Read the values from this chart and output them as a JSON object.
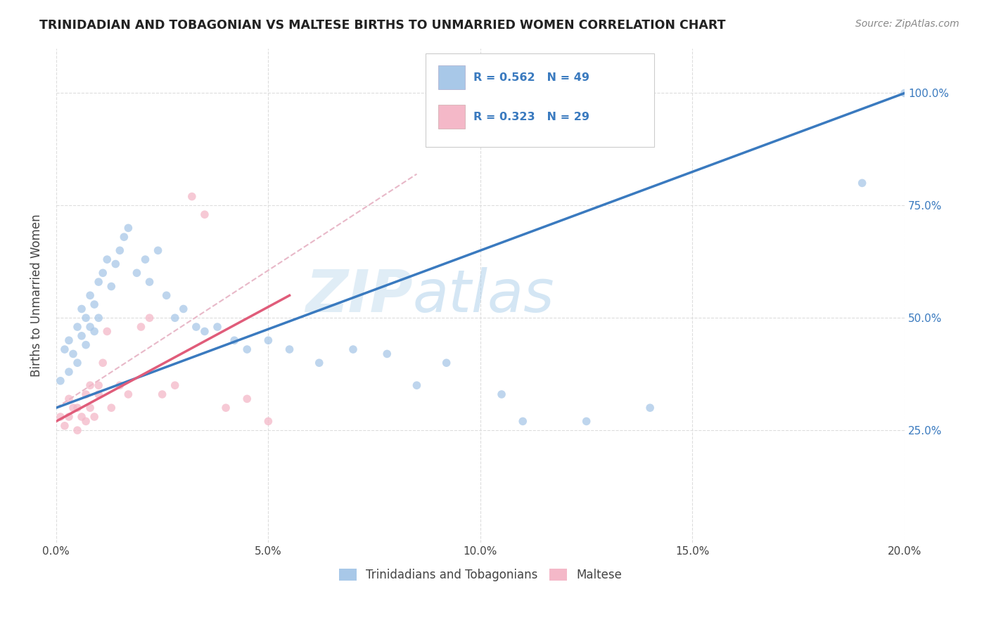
{
  "title": "TRINIDADIAN AND TOBAGONIAN VS MALTESE BIRTHS TO UNMARRIED WOMEN CORRELATION CHART",
  "source": "Source: ZipAtlas.com",
  "ylabel": "Births to Unmarried Women",
  "legend_labels": [
    "Trinidadians and Tobagonians",
    "Maltese"
  ],
  "blue_color": "#a8c8e8",
  "pink_color": "#f4b8c8",
  "blue_line_color": "#3a7abf",
  "pink_line_color": "#e05c7a",
  "dot_size": 70,
  "xlim": [
    0.0,
    20.0
  ],
  "ylim": [
    0.0,
    110.0
  ],
  "xticks": [
    0.0,
    5.0,
    10.0,
    15.0,
    20.0
  ],
  "yticks": [
    25.0,
    50.0,
    75.0,
    100.0
  ],
  "xtick_labels": [
    "0.0%",
    "5.0%",
    "10.0%",
    "15.0%",
    "20.0%"
  ],
  "ytick_labels": [
    "25.0%",
    "50.0%",
    "75.0%",
    "100.0%"
  ],
  "watermark_zip": "ZIP",
  "watermark_atlas": "atlas",
  "blue_x": [
    0.1,
    0.2,
    0.3,
    0.3,
    0.4,
    0.5,
    0.5,
    0.6,
    0.6,
    0.7,
    0.7,
    0.8,
    0.8,
    0.9,
    0.9,
    1.0,
    1.0,
    1.1,
    1.2,
    1.3,
    1.4,
    1.5,
    1.6,
    1.7,
    1.9,
    2.1,
    2.2,
    2.4,
    2.6,
    2.8,
    3.0,
    3.3,
    3.5,
    3.8,
    4.2,
    4.5,
    5.0,
    5.5,
    6.2,
    7.0,
    7.8,
    8.5,
    9.2,
    10.5,
    11.0,
    12.5,
    14.0,
    19.0,
    20.0
  ],
  "blue_y": [
    36,
    43,
    38,
    45,
    42,
    40,
    48,
    46,
    52,
    50,
    44,
    55,
    48,
    53,
    47,
    58,
    50,
    60,
    63,
    57,
    62,
    65,
    68,
    70,
    60,
    63,
    58,
    65,
    55,
    50,
    52,
    48,
    47,
    48,
    45,
    43,
    45,
    43,
    40,
    43,
    42,
    35,
    40,
    33,
    27,
    27,
    30,
    80,
    100
  ],
  "pink_x": [
    0.1,
    0.2,
    0.3,
    0.3,
    0.4,
    0.5,
    0.5,
    0.6,
    0.7,
    0.7,
    0.8,
    0.8,
    0.9,
    1.0,
    1.0,
    1.1,
    1.2,
    1.3,
    1.5,
    1.7,
    2.0,
    2.2,
    2.5,
    2.8,
    3.2,
    3.5,
    4.0,
    4.5,
    5.0
  ],
  "pink_y": [
    28,
    26,
    32,
    28,
    30,
    25,
    30,
    28,
    27,
    33,
    30,
    35,
    28,
    35,
    33,
    40,
    47,
    30,
    35,
    33,
    48,
    50,
    33,
    35,
    77,
    73,
    30,
    32,
    27
  ],
  "background_color": "#ffffff",
  "grid_color": "#dddddd",
  "legend_r_blue": "R = 0.562",
  "legend_n_blue": "N = 49",
  "legend_r_pink": "R = 0.323",
  "legend_n_pink": "N = 29"
}
